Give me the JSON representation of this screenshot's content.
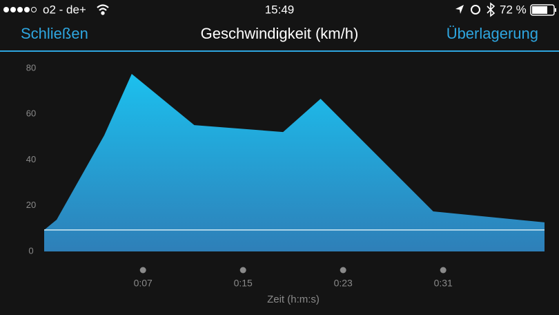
{
  "status_bar": {
    "carrier": "o2 - de+",
    "time": "15:49",
    "battery": "72 %"
  },
  "nav_bar": {
    "left_button": "Schließen",
    "right_button": "Überlagerung"
  },
  "chart_data": {
    "type": "area",
    "title": "Geschwindigkeit (km/h)",
    "x_label": "Zeit (h:m:s)",
    "x": [
      -0.9,
      0.1,
      3.9,
      6.1,
      11.1,
      18.2,
      21.2,
      30.2,
      39.1
    ],
    "series": [
      {
        "color": "#1cb9e8",
        "values": [
          9.4,
          13.9,
          50.7,
          77.6,
          55.2,
          52.2,
          66.7,
          17.5,
          12.7
        ]
      }
    ],
    "reference_line": {
      "value": 9.4,
      "color": "#d6ecf5"
    },
    "xlim": [
      -0.9,
      39.1
    ],
    "xticks": [
      {
        "value": 7,
        "label": "0:07"
      },
      {
        "value": 15,
        "label": "0:15"
      },
      {
        "value": 23,
        "label": "0:23"
      },
      {
        "value": 31,
        "label": "0:31"
      }
    ],
    "ylim": [
      0,
      80
    ],
    "yticks": [
      0,
      20,
      40,
      60,
      80
    ],
    "grid": false
  }
}
